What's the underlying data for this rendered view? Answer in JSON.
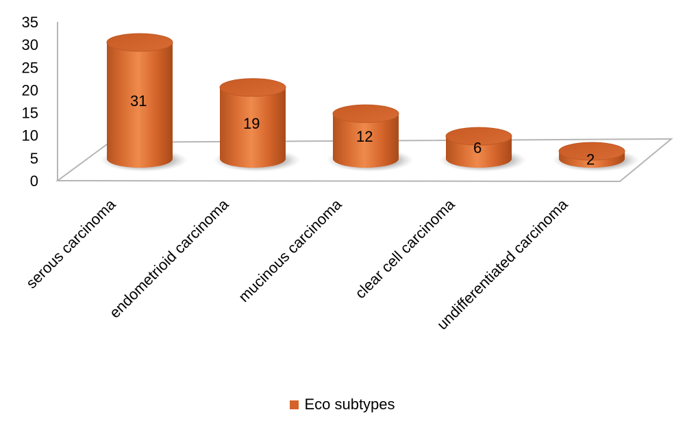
{
  "chart_data": {
    "type": "bar",
    "style": "3d-cylinder",
    "categories": [
      "serous carcinoma",
      "endometrioid carcinoma",
      "mucinous carcinoma",
      "clear cell carcinoma",
      "undifferentiated carcinoma"
    ],
    "series": [
      {
        "name": "Eco subtypes",
        "values": [
          31,
          19,
          12,
          6,
          2
        ],
        "color": "#d4632a"
      }
    ],
    "data_labels": [
      "31",
      "19",
      "12",
      "6",
      "2"
    ],
    "ylim": [
      0,
      35
    ],
    "y_ticks": [
      "0",
      "5",
      "10",
      "15",
      "20",
      "25",
      "30",
      "35"
    ],
    "grid": false,
    "legend": {
      "position": "bottom",
      "label": "Eco subtypes"
    },
    "title": "",
    "xlabel": "",
    "ylabel": ""
  }
}
